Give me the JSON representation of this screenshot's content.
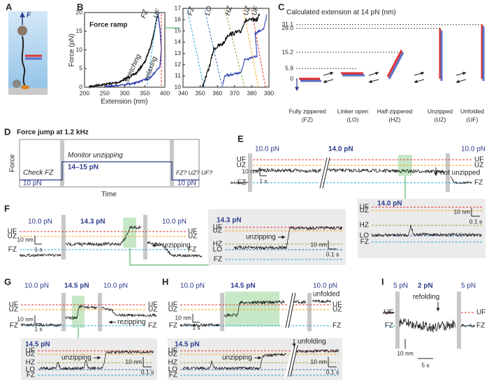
{
  "panels": {
    "a": {
      "letter": "A",
      "force": "F"
    },
    "b": {
      "letter": "B",
      "title": "Force ramp",
      "xlabel": "Extension (nm)",
      "ylabel": "Force (pN)",
      "xticks": [
        200,
        250,
        300,
        350,
        400
      ],
      "yticks": [
        0,
        5,
        10,
        15,
        20
      ],
      "stretching": "stretching",
      "relaxing": "relaxing",
      "states": [
        "FZ",
        "UF"
      ],
      "inset": {
        "xticks": [
          340,
          350,
          360,
          370,
          380,
          390
        ],
        "yticks": [
          10,
          11,
          12,
          13,
          14,
          15,
          16,
          17
        ],
        "states": [
          "FZ",
          "LO",
          "HZ",
          "UZ",
          "UF"
        ]
      }
    },
    "c": {
      "letter": "C",
      "title": "Calculated extension at 14 pN (nm)",
      "levels": [
        31.1,
        {
          "value": 29,
          "label": "29.0"
        },
        15.2,
        5.9,
        0
      ],
      "states": [
        {
          "name": "Fully zippered",
          "abbr": "(FZ)"
        },
        {
          "name": "Linker open",
          "abbr": "(LO)"
        },
        {
          "name": "Half-zippered",
          "abbr": "(HZ)"
        },
        {
          "name": "Unzipped",
          "abbr": "(UZ)"
        },
        {
          "name": "Unfolded",
          "abbr": "(UF)"
        }
      ]
    },
    "d": {
      "letter": "D",
      "title": "Force jump at 1.2 kHz",
      "ylabel": "Force",
      "xlabel": "Time",
      "phases": [
        {
          "note": "Check FZ",
          "force": "10 pN"
        },
        {
          "note": "Monitor unzipping",
          "force": "14–15 pN"
        },
        {
          "note": "FZ? UZ? UF?",
          "force": "10 pN"
        }
      ]
    },
    "e": {
      "letter": "E",
      "forces": [
        "10.0 pN",
        "14.0 pN",
        "10.0 pN"
      ],
      "levels": [
        "UF",
        "UZ",
        "FZ"
      ],
      "levels_right": [
        "UF",
        "UZ",
        "FZ"
      ],
      "note": "not unzipped",
      "scale": [
        "10 nm",
        "1 s"
      ],
      "inset": {
        "force": "14.0 pN",
        "levels": [
          "UF",
          "UZ",
          "HZ",
          "LO",
          "FZ"
        ],
        "scale": [
          "10 nm",
          "0.1 s"
        ]
      }
    },
    "f": {
      "letter": "F",
      "forces": [
        "10.0 pN",
        "14.3 pN",
        "10.0 pN"
      ],
      "levels": [
        "UF",
        "UZ",
        "FZ"
      ],
      "levels_right": [
        "UF",
        "UZ",
        "FZ"
      ],
      "note": "rezipping",
      "scale": [
        "10 nm",
        "1 s"
      ],
      "inset": {
        "force": "14.3 pN",
        "levels": [
          "UF",
          "UZ",
          "HZ",
          "LO",
          "FZ"
        ],
        "note": "unzipping",
        "scale": [
          "10 nm",
          "0.1 s"
        ]
      }
    },
    "g": {
      "letter": "G",
      "forces": [
        "10.0 pN",
        "14.5 pN",
        "10.0 pN"
      ],
      "levels": [
        "UF",
        "UZ",
        "FZ"
      ],
      "levels_right": [
        "UF",
        "UZ",
        "FZ"
      ],
      "note": "rezipping",
      "scale": [
        "10 nm",
        "1 s"
      ],
      "inset": {
        "force": "14.5 pN",
        "levels": [
          "UF",
          "UZ",
          "HZ",
          "LO",
          "FZ"
        ],
        "note": "unzipping",
        "scale": [
          "10 nm",
          "0.1 s"
        ]
      }
    },
    "h": {
      "letter": "H",
      "forces": [
        "10.0 pN",
        "14.5 pN",
        "10.0 pN"
      ],
      "levels": [
        "UF",
        "UZ",
        "FZ"
      ],
      "levels_right": [
        "UF",
        "UZ",
        "FZ"
      ],
      "note": "unfolded",
      "scale": [
        "10 nm",
        "1 s"
      ],
      "inset": {
        "force": "14.5 pN",
        "levels": [
          "UF",
          "UZ",
          "HZ",
          "LO",
          "FZ"
        ],
        "note": "unzipping",
        "note2": "unfolding",
        "scale": [
          "10 nm",
          "0.1 s"
        ]
      }
    },
    "i": {
      "letter": "I",
      "forces": [
        "5 pN",
        "2 pN",
        "5 pN"
      ],
      "levels": [
        "UF",
        "FZ"
      ],
      "levels_right": [
        "UF",
        "FZ"
      ],
      "note": "refolding",
      "scale": [
        "10 nm",
        "5 s"
      ]
    }
  }
}
